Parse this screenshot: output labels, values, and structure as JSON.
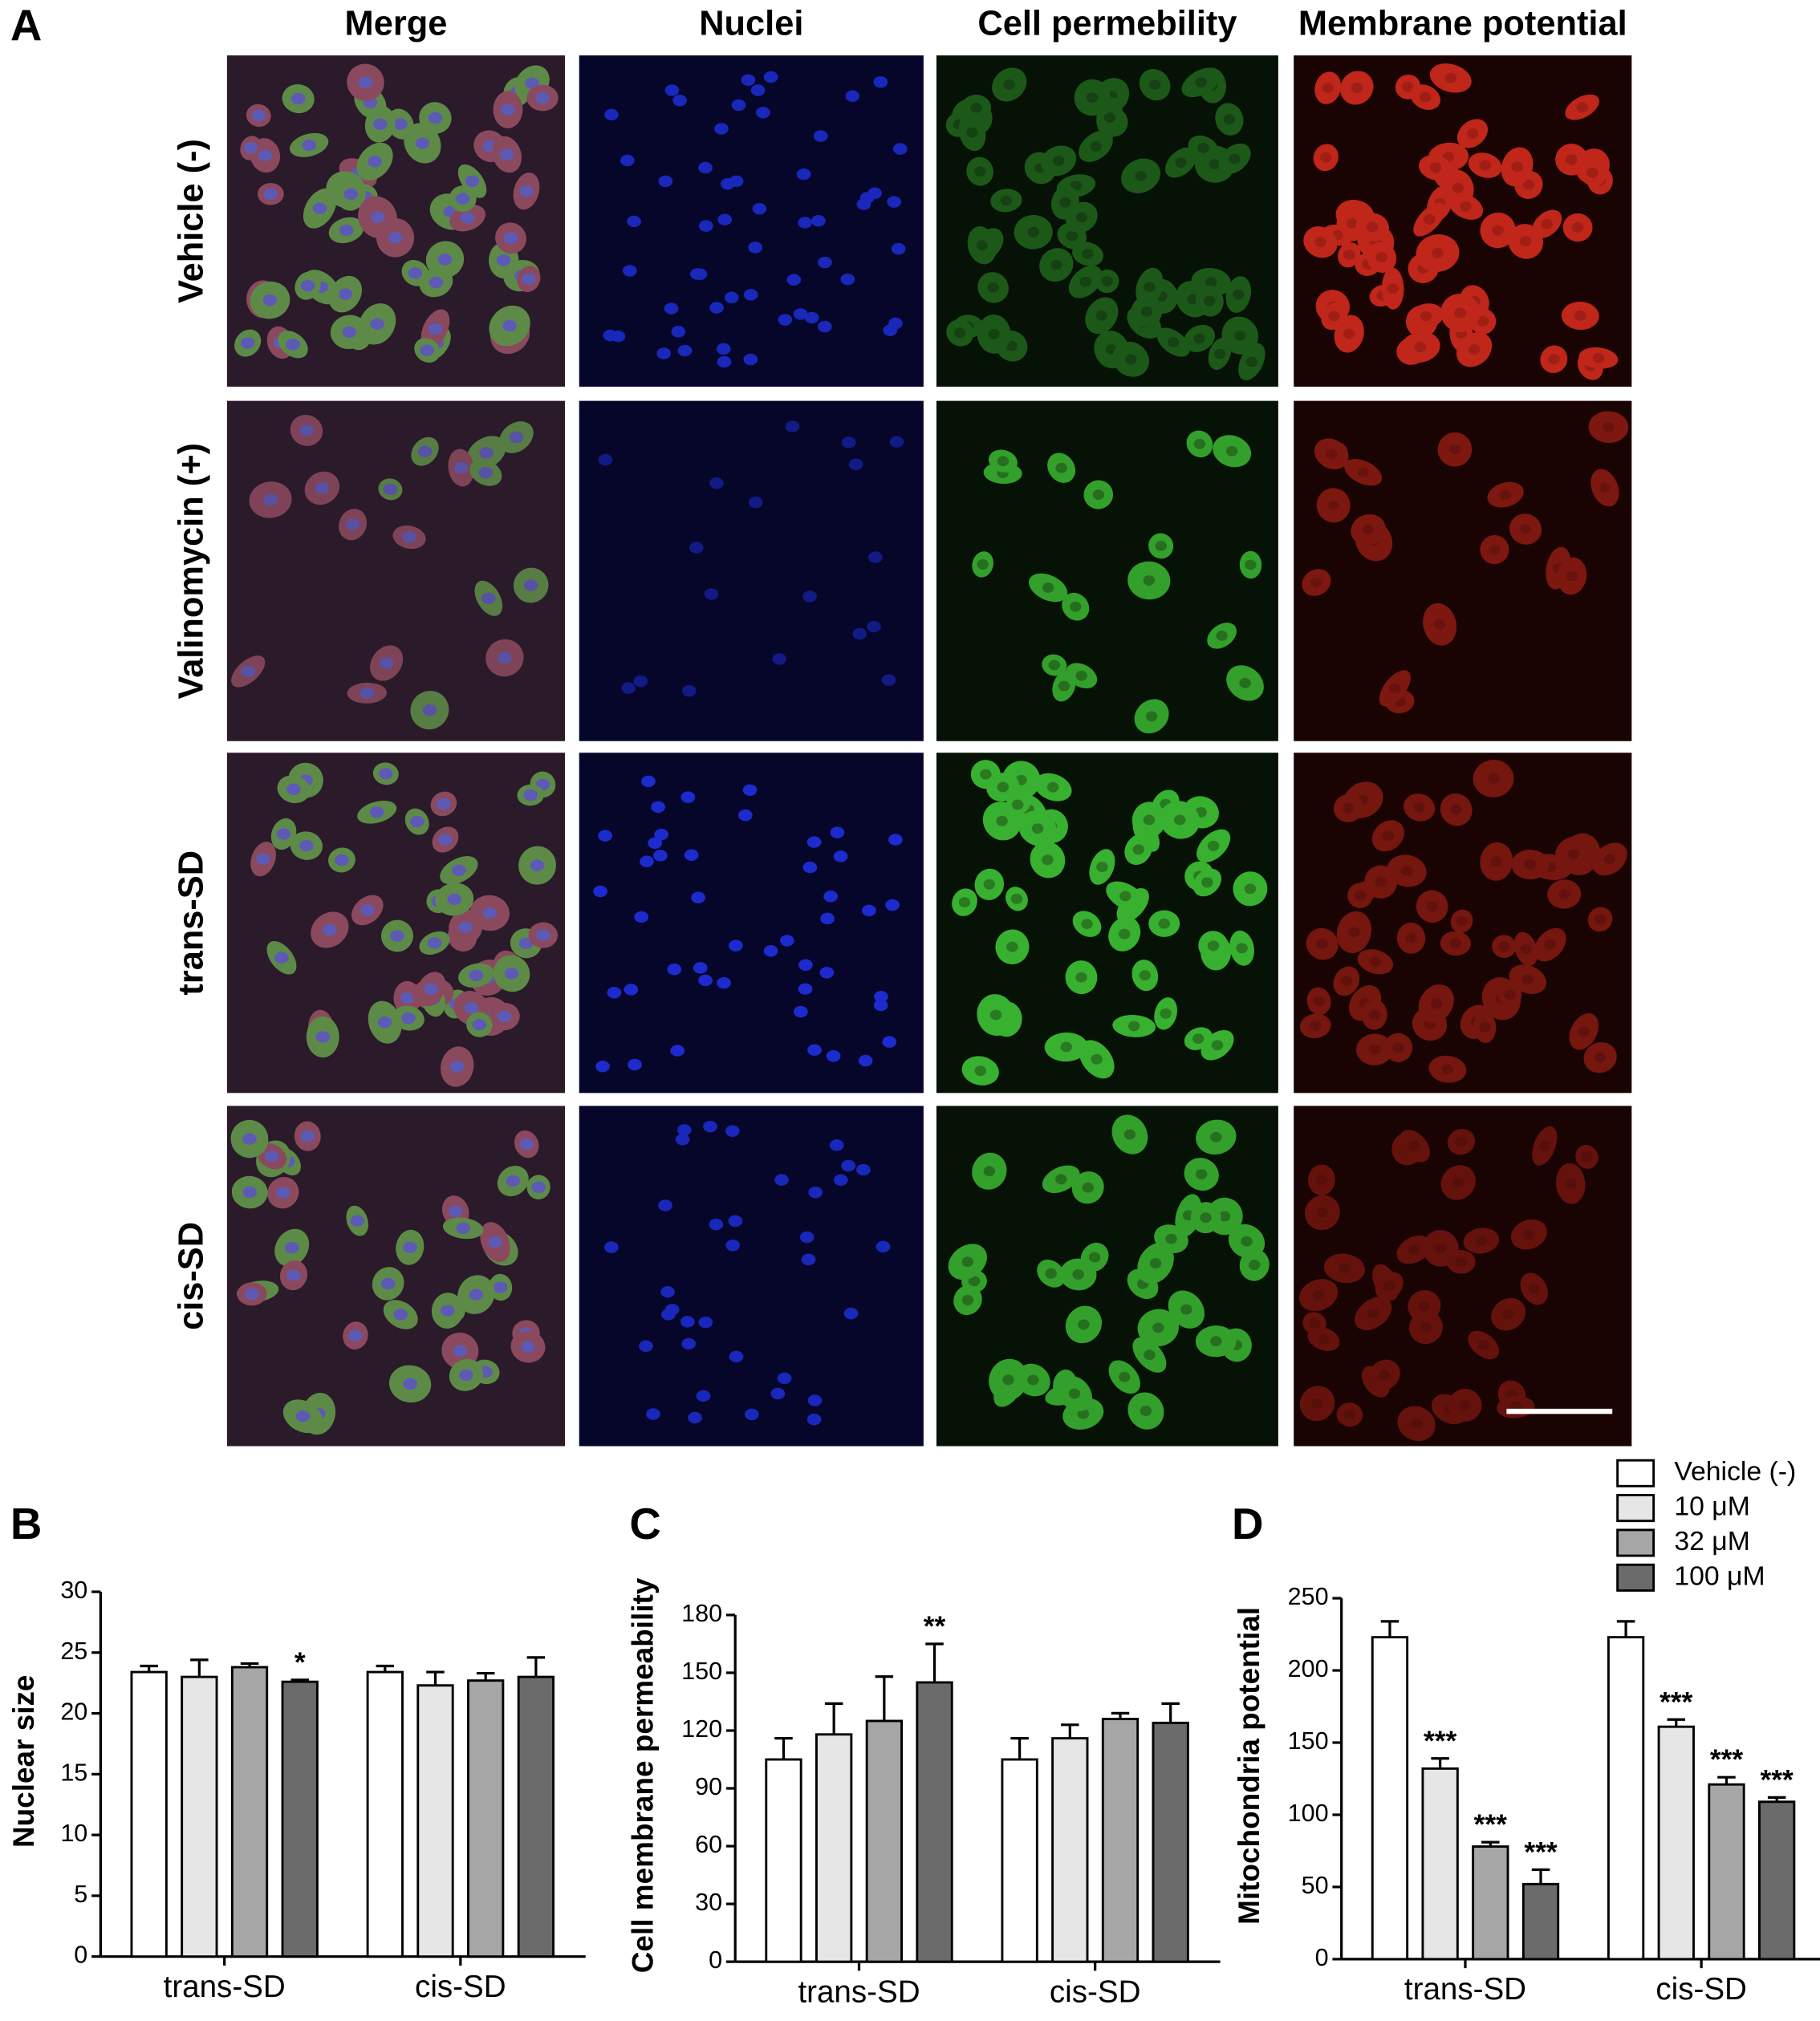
{
  "panel_a": {
    "label": "A",
    "columns": [
      "Merge",
      "Nuclei",
      "Cell permebility",
      "Membrane potential"
    ],
    "rows": [
      "Vehicle (-)",
      "Valinomycin (+)",
      "trans-SD",
      "cis-SD"
    ]
  },
  "chart_data": [
    {
      "type": "bar",
      "label": "B",
      "y_label": "Nuclear size",
      "categories": [
        "trans-SD",
        "cis-SD"
      ],
      "ylim": [
        0,
        30
      ],
      "yticks": [
        0,
        5,
        10,
        15,
        20,
        25,
        30
      ],
      "series": [
        {
          "color": "#ffffff",
          "values": [
            23.4,
            23.4
          ],
          "errors": [
            0.5,
            0.5
          ],
          "marks": [
            null,
            null
          ]
        },
        {
          "color": "#e6e6e6",
          "values": [
            23.0,
            22.3
          ],
          "errors": [
            1.4,
            1.1
          ],
          "marks": [
            null,
            null
          ]
        },
        {
          "color": "#a6a6a6",
          "values": [
            23.8,
            22.7
          ],
          "errors": [
            0.3,
            0.6
          ],
          "marks": [
            null,
            null
          ]
        },
        {
          "color": "#6b6b6b",
          "values": [
            22.6,
            23.0
          ],
          "errors": [
            0.15,
            1.6
          ],
          "marks": [
            "*",
            null
          ]
        }
      ]
    },
    {
      "type": "bar",
      "label": "C",
      "y_label": "Cell membrane permeability",
      "categories": [
        "trans-SD",
        "cis-SD"
      ],
      "ylim": [
        0,
        180
      ],
      "yticks": [
        0,
        30,
        60,
        90,
        120,
        150,
        180
      ],
      "series": [
        {
          "color": "#ffffff",
          "values": [
            105,
            105
          ],
          "errors": [
            11,
            11
          ],
          "marks": [
            null,
            null
          ]
        },
        {
          "color": "#e6e6e6",
          "values": [
            118,
            116
          ],
          "errors": [
            16,
            7
          ],
          "marks": [
            null,
            null
          ]
        },
        {
          "color": "#a6a6a6",
          "values": [
            125,
            126
          ],
          "errors": [
            23,
            3
          ],
          "marks": [
            null,
            null
          ]
        },
        {
          "color": "#6b6b6b",
          "values": [
            145,
            124
          ],
          "errors": [
            20,
            10
          ],
          "marks": [
            "**",
            null
          ]
        }
      ]
    },
    {
      "type": "bar",
      "label": "D",
      "y_label": "Mitochondria potential",
      "categories": [
        "trans-SD",
        "cis-SD"
      ],
      "ylim": [
        0,
        250
      ],
      "yticks": [
        0,
        50,
        100,
        150,
        200,
        250
      ],
      "legend": "above-right",
      "series": [
        {
          "name": "Vehicle (-)",
          "color": "#ffffff",
          "values": [
            223,
            223
          ],
          "errors": [
            11,
            11
          ],
          "marks": [
            null,
            null
          ]
        },
        {
          "name": "10 μM",
          "color": "#e6e6e6",
          "values": [
            132,
            161
          ],
          "errors": [
            7,
            5
          ],
          "marks": [
            "***",
            "***"
          ]
        },
        {
          "name": "32 μM",
          "color": "#a6a6a6",
          "values": [
            78,
            121
          ],
          "errors": [
            3,
            5
          ],
          "marks": [
            "***",
            "***"
          ]
        },
        {
          "name": "100 μM",
          "color": "#6b6b6b",
          "values": [
            52,
            109
          ],
          "errors": [
            10,
            3
          ],
          "marks": [
            "***",
            "***"
          ]
        }
      ]
    }
  ]
}
